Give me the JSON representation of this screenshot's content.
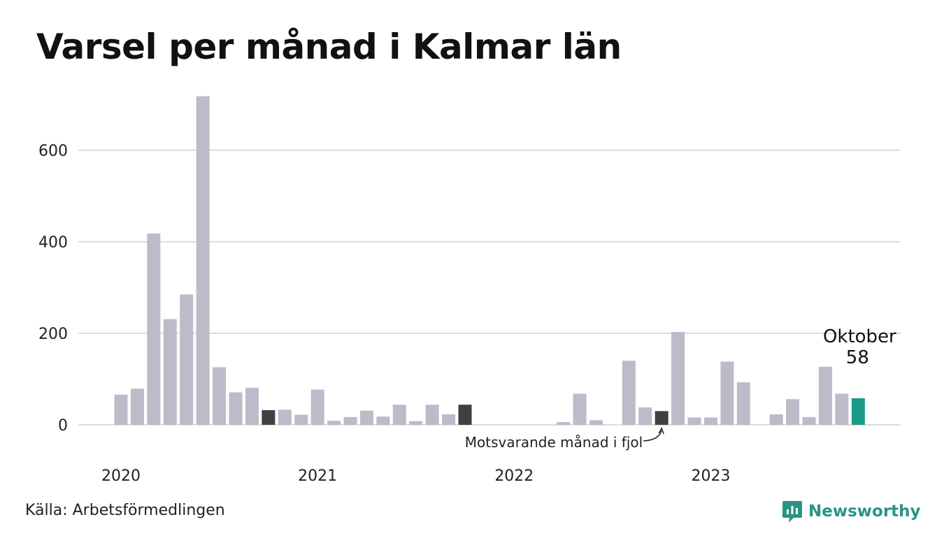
{
  "title": "Varsel per månad i Kalmar län",
  "source": "Källa: Arbetsförmedlingen",
  "brand": {
    "name": "Newsworthy",
    "icon": "newsworthy-logo-icon",
    "color": "#2a9484"
  },
  "colors": {
    "bar": "#bdbbca",
    "same_month_prev_year": "#404040",
    "current": "#1b9a8a",
    "grid": "#dddddd"
  },
  "chart_data": {
    "type": "bar",
    "title": "Varsel per månad i Kalmar län",
    "xlabel": "",
    "ylabel": "",
    "ylim": [
      0,
      740
    ],
    "yticks": [
      0,
      200,
      400,
      600
    ],
    "grid": true,
    "x_tick_labels": [
      "2020",
      "2021",
      "2022",
      "2023"
    ],
    "categories": [
      "2020-01",
      "2020-02",
      "2020-03",
      "2020-04",
      "2020-05",
      "2020-06",
      "2020-07",
      "2020-08",
      "2020-09",
      "2020-10",
      "2020-11",
      "2020-12",
      "2021-01",
      "2021-02",
      "2021-03",
      "2021-04",
      "2021-05",
      "2021-06",
      "2021-07",
      "2021-08",
      "2021-09",
      "2021-10",
      "2021-11",
      "2021-12",
      "2022-01",
      "2022-02",
      "2022-03",
      "2022-04",
      "2022-05",
      "2022-06",
      "2022-07",
      "2022-08",
      "2022-09",
      "2022-10",
      "2022-11",
      "2022-12",
      "2023-01",
      "2023-02",
      "2023-03",
      "2023-04",
      "2023-05",
      "2023-06",
      "2023-07",
      "2023-08",
      "2023-09",
      "2023-10"
    ],
    "values": [
      66,
      79,
      418,
      231,
      285,
      718,
      126,
      71,
      81,
      32,
      33,
      22,
      77,
      9,
      17,
      31,
      18,
      44,
      8,
      44,
      23,
      44,
      0,
      0,
      0,
      0,
      0,
      6,
      68,
      10,
      0,
      140,
      38,
      30,
      203,
      16,
      16,
      138,
      93,
      0,
      23,
      56,
      17,
      127,
      68,
      58
    ],
    "highlights": [
      {
        "index": 9,
        "role": "same_month_prev_year"
      },
      {
        "index": 21,
        "role": "same_month_prev_year"
      },
      {
        "index": 33,
        "role": "same_month_prev_year",
        "annotation": "Motsvarande månad i fjol"
      },
      {
        "index": 45,
        "role": "current",
        "label": "Oktober",
        "value_label": "58"
      }
    ]
  }
}
